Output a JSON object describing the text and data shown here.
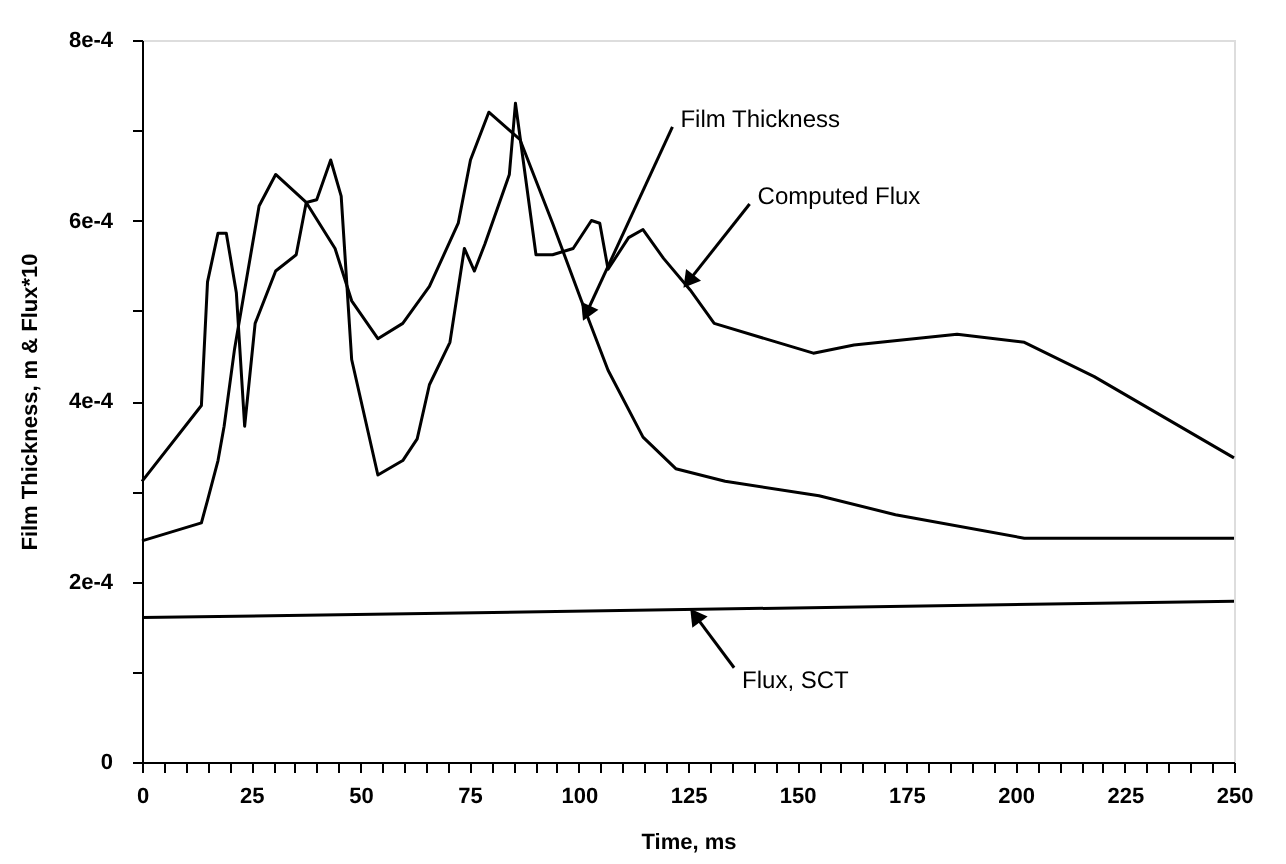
{
  "chart_data": {
    "type": "line",
    "xlabel": "Time, ms",
    "ylabel": "Film Thickness, m & Flux*10",
    "xlim": [
      0,
      250
    ],
    "ylim": [
      0,
      0.0008
    ],
    "xticks": [
      0,
      {
        "value": 5,
        "label": null
      },
      {
        "value": 10,
        "label": null
      },
      {
        "value": 15,
        "label": null
      },
      {
        "value": 20,
        "label": null
      },
      25,
      {
        "value": 30,
        "label": null
      },
      {
        "value": 35,
        "label": null
      },
      {
        "value": 40,
        "label": null
      },
      {
        "value": 45,
        "label": null
      },
      50,
      {
        "value": 55,
        "label": null
      },
      {
        "value": 60,
        "label": null
      },
      {
        "value": 65,
        "label": null
      },
      {
        "value": 70,
        "label": null
      },
      75,
      {
        "value": 80,
        "label": null
      },
      {
        "value": 85,
        "label": null
      },
      {
        "value": 90,
        "label": null
      },
      {
        "value": 95,
        "label": null
      },
      100,
      {
        "value": 105,
        "label": null
      },
      {
        "value": 110,
        "label": null
      },
      {
        "value": 115,
        "label": null
      },
      {
        "value": 120,
        "label": null
      },
      125,
      {
        "value": 130,
        "label": null
      },
      {
        "value": 135,
        "label": null
      },
      {
        "value": 140,
        "label": null
      },
      {
        "value": 145,
        "label": null
      },
      150,
      {
        "value": 155,
        "label": null
      },
      {
        "value": 160,
        "label": null
      },
      {
        "value": 165,
        "label": null
      },
      {
        "value": 170,
        "label": null
      },
      175,
      {
        "value": 180,
        "label": null
      },
      {
        "value": 185,
        "label": null
      },
      {
        "value": 190,
        "label": null
      },
      {
        "value": 195,
        "label": null
      },
      200,
      {
        "value": 205,
        "label": null
      },
      {
        "value": 210,
        "label": null
      },
      {
        "value": 215,
        "label": null
      },
      {
        "value": 220,
        "label": null
      },
      225,
      {
        "value": 230,
        "label": null
      },
      {
        "value": 235,
        "label": null
      },
      {
        "value": 240,
        "label": null
      },
      {
        "value": 245,
        "label": null
      },
      250
    ],
    "yticks": [
      0,
      {
        "value": 0.0001,
        "label": null
      },
      {
        "value": 0.0002,
        "label": "2e-4"
      },
      {
        "value": 0.0003,
        "label": null
      },
      {
        "value": 0.0004,
        "label": "4e-4"
      },
      {
        "value": 0.0005,
        "label": null
      },
      {
        "value": 0.0006,
        "label": "6e-4"
      },
      {
        "value": 0.0007,
        "label": null
      },
      {
        "value": 0.0008,
        "label": "8e-4"
      }
    ],
    "grid": false,
    "marker": "none",
    "line_style": "solid",
    "series": [
      {
        "color": "#000000",
        "x": [
          0,
          13.6,
          15,
          17.4,
          19.3,
          21.6,
          23.5,
          25.9,
          30.6,
          35.3,
          37.6,
          40,
          43.2,
          45.6,
          48,
          54,
          59.7,
          63,
          65.8,
          70.5,
          73.8,
          76.1,
          78.5,
          84.1,
          85.5,
          90.2,
          94,
          98.7,
          102.9,
          104.8,
          106.7,
          111.4,
          114.7,
          119.4,
          125.5,
          131,
          153.7,
          163,
          186.6,
          202,
          218,
          250
        ],
        "values": [
          0.000311,
          0.000395,
          0.000532,
          0.000586,
          0.000586,
          0.00052,
          0.000372,
          0.000486,
          0.000544,
          0.000562,
          0.00062,
          0.000623,
          0.000667,
          0.000627,
          0.000446,
          0.000318,
          0.000334,
          0.000358,
          0.000418,
          0.000465,
          0.000569,
          0.000544,
          0.000574,
          0.000651,
          0.00073,
          0.000562,
          0.000562,
          0.000569,
          0.0006,
          0.000597,
          0.000546,
          0.000581,
          0.00059,
          0.000558,
          0.000523,
          0.000486,
          0.000453,
          0.000462,
          0.000474,
          0.000465,
          0.000427,
          0.000337
        ]
      },
      {
        "color": "#000000",
        "x": [
          0,
          13.6,
          15,
          17.4,
          18.8,
          21.2,
          23.5,
          26.8,
          30.6,
          37.6,
          44.2,
          48,
          54,
          59.7,
          65.8,
          72.4,
          75.2,
          79.4,
          86.5,
          94,
          100.6,
          106.7,
          114.7,
          122.2,
          133.5,
          155,
          172.5,
          202,
          250
        ],
        "values": [
          0.000245,
          0.000265,
          0.00029,
          0.000334,
          0.000372,
          0.000458,
          0.000523,
          0.000616,
          0.000651,
          0.00062,
          0.000569,
          0.000511,
          0.000469,
          0.000486,
          0.000527,
          0.000597,
          0.000667,
          0.00072,
          0.00069,
          0.000597,
          0.000511,
          0.000434,
          0.00036,
          0.000325,
          0.000311,
          0.000295,
          0.000274,
          0.000248,
          0.000248
        ]
      },
      {
        "color": "#000000",
        "x": [
          0,
          250
        ],
        "values": [
          0.00016,
          0.000178
        ]
      }
    ],
    "annotations": [
      {
        "text": "Film Thickness",
        "x": 102,
        "y": 0.0005
      },
      {
        "text": "Computed Flux",
        "x": 125.5,
        "y": 0.000535
      },
      {
        "text": "Flux, SCT",
        "x": 127,
        "y": 0.00016
      }
    ]
  }
}
